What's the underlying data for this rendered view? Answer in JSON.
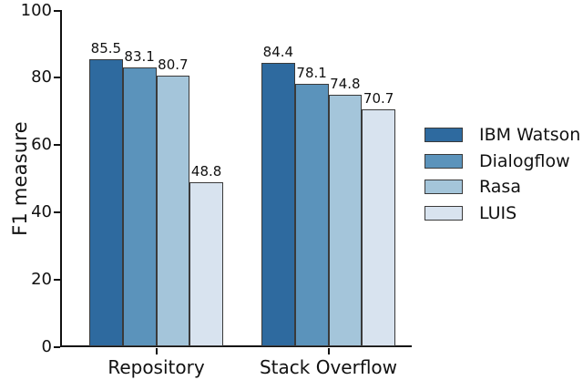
{
  "chart_data": {
    "type": "bar",
    "title": "",
    "xlabel": "",
    "ylabel": "F1 measure",
    "categories": [
      "Repository",
      "Stack Overflow"
    ],
    "series": [
      {
        "name": "IBM Watson",
        "color": "#2e6a9f",
        "values": [
          85.5,
          84.4
        ]
      },
      {
        "name": "Dialogflow",
        "color": "#5b93bb",
        "values": [
          83.1,
          78.1
        ]
      },
      {
        "name": "Rasa",
        "color": "#a4c5da",
        "values": [
          80.7,
          74.8
        ]
      },
      {
        "name": "LUIS",
        "color": "#d8e3ef",
        "values": [
          48.8,
          70.7
        ]
      }
    ],
    "ylim": [
      0,
      100
    ],
    "yticks": [
      0,
      20,
      40,
      60,
      80,
      100
    ],
    "grid": false,
    "legend_position": "right",
    "value_labels": true,
    "value_label_format": "one-decimal",
    "bar_edge_color": "#3a3a3a",
    "axis_color": "#111111",
    "background_color": "#ffffff"
  }
}
